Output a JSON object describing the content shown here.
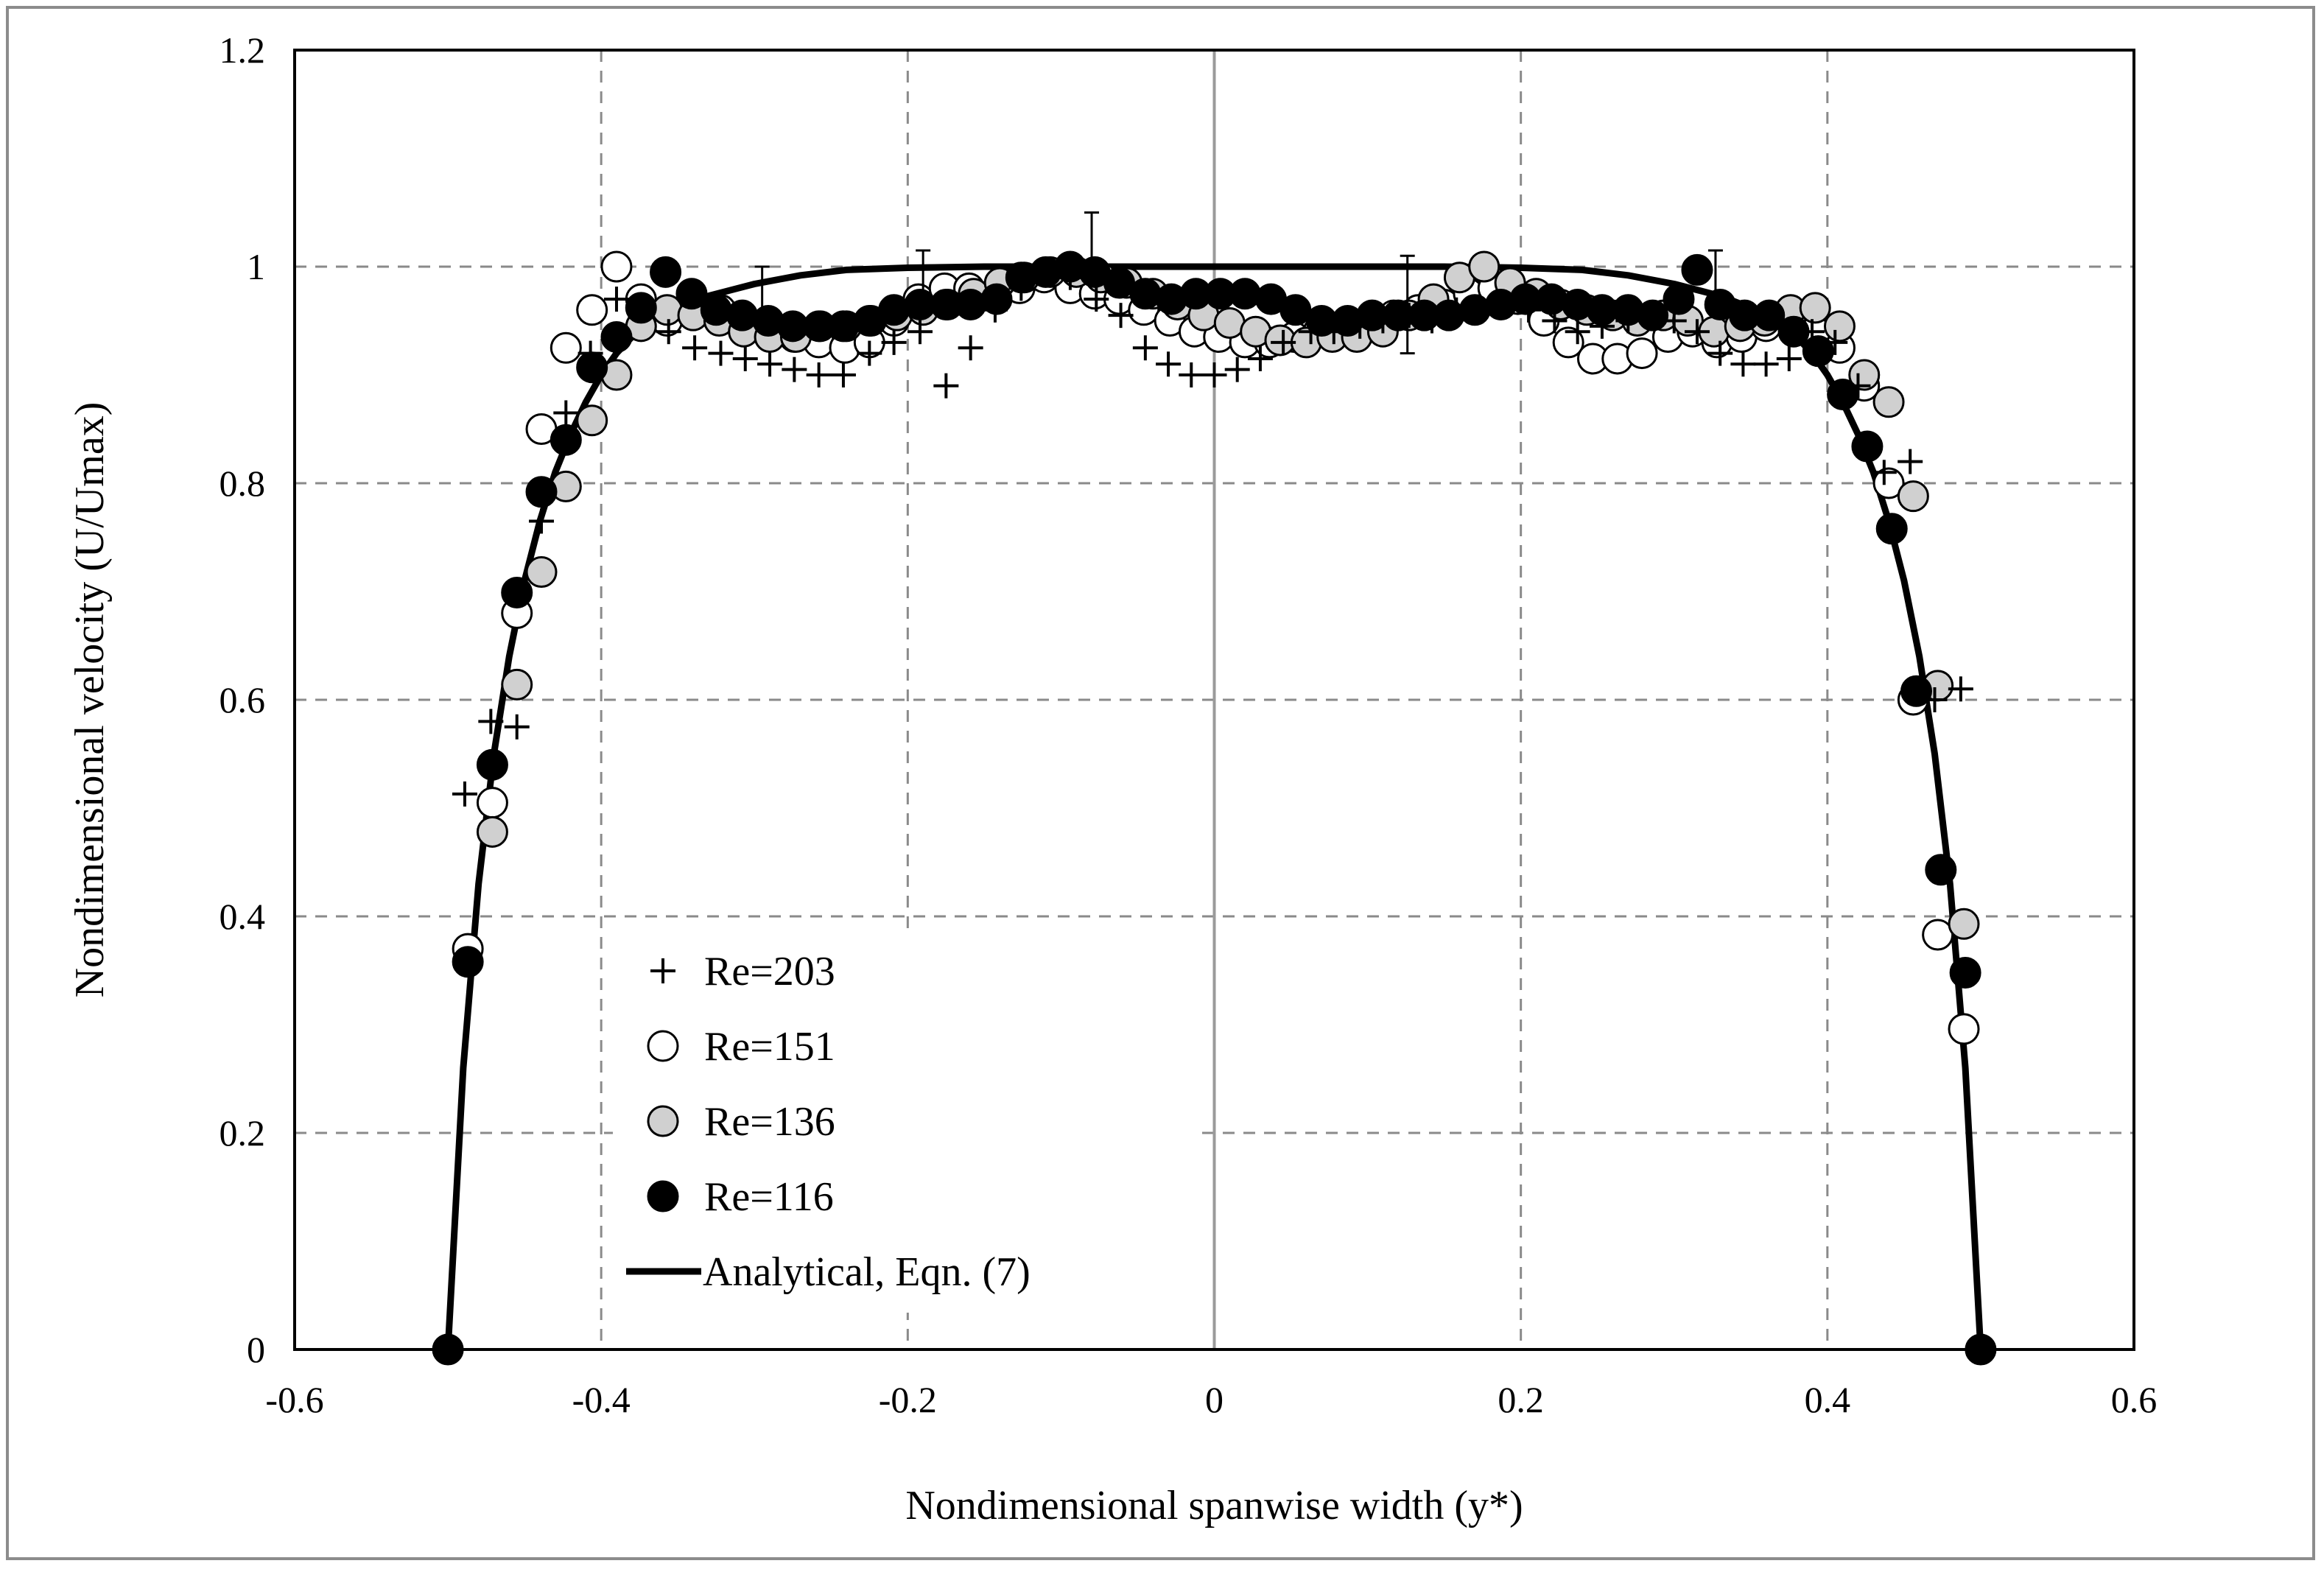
{
  "chart_data": {
    "type": "scatter",
    "title": "",
    "xlabel": "Nondimensional spanwise width (y*)",
    "ylabel": "Nondimensional velocity (U/Umax)",
    "xlim": [
      -0.6,
      0.6
    ],
    "ylim": [
      0,
      1.2
    ],
    "x_ticks": [
      -0.6,
      -0.4,
      -0.2,
      0,
      0.2,
      0.4,
      0.6
    ],
    "x_tick_labels": [
      "-0.6",
      "-0.4",
      "-0.2",
      "0",
      "0.2",
      "0.4",
      "0.6"
    ],
    "y_ticks": [
      0,
      0.2,
      0.4,
      0.6,
      0.8,
      1,
      1.2
    ],
    "y_tick_labels": [
      "0",
      "0.2",
      "0.4",
      "0.6",
      "0.8",
      "1",
      "1.2"
    ],
    "grid": true,
    "legend_position": "lower-left",
    "series": [
      {
        "name": "Re=203",
        "marker": "plus",
        "color": "#000000",
        "points": [
          [
            -0.489,
            0.513
          ],
          [
            -0.472,
            0.58
          ],
          [
            -0.455,
            0.575
          ],
          [
            -0.439,
            0.765
          ],
          [
            -0.423,
            0.865
          ],
          [
            -0.407,
            0.92
          ],
          [
            -0.39,
            0.97
          ],
          [
            -0.374,
            0.96
          ],
          [
            -0.356,
            0.94
          ],
          [
            -0.339,
            0.925
          ],
          [
            -0.322,
            0.92
          ],
          [
            -0.306,
            0.915
          ],
          [
            -0.29,
            0.91
          ],
          [
            -0.274,
            0.905
          ],
          [
            -0.258,
            0.9
          ],
          [
            -0.242,
            0.9
          ],
          [
            -0.225,
            0.92
          ],
          [
            -0.209,
            0.93
          ],
          [
            -0.192,
            0.94
          ],
          [
            -0.175,
            0.89
          ],
          [
            -0.159,
            0.925
          ],
          [
            -0.143,
            0.96
          ],
          [
            -0.126,
            0.98
          ],
          [
            -0.11,
            0.995
          ],
          [
            -0.094,
            0.99
          ],
          [
            -0.077,
            0.97
          ],
          [
            -0.061,
            0.955
          ],
          [
            -0.045,
            0.925
          ],
          [
            -0.03,
            0.91
          ],
          [
            -0.015,
            0.9
          ],
          [
            0.0,
            0.9
          ],
          [
            0.015,
            0.905
          ],
          [
            0.03,
            0.915
          ],
          [
            0.045,
            0.93
          ],
          [
            0.063,
            0.94
          ],
          [
            0.078,
            0.94
          ],
          [
            0.095,
            0.945
          ],
          [
            0.11,
            0.95
          ],
          [
            0.127,
            0.955
          ],
          [
            0.142,
            0.95
          ],
          [
            0.158,
            0.96
          ],
          [
            0.175,
            0.96
          ],
          [
            0.19,
            0.965
          ],
          [
            0.205,
            0.96
          ],
          [
            0.222,
            0.95
          ],
          [
            0.237,
            0.94
          ],
          [
            0.253,
            0.945
          ],
          [
            0.27,
            0.95
          ],
          [
            0.285,
            0.955
          ],
          [
            0.3,
            0.95
          ],
          [
            0.315,
            0.94
          ],
          [
            0.33,
            0.92
          ],
          [
            0.345,
            0.91
          ],
          [
            0.36,
            0.91
          ],
          [
            0.375,
            0.915
          ],
          [
            0.39,
            0.94
          ],
          [
            0.405,
            0.93
          ],
          [
            0.42,
            0.89
          ],
          [
            0.437,
            0.81
          ],
          [
            0.454,
            0.82
          ],
          [
            0.47,
            0.6
          ],
          [
            0.487,
            0.61
          ]
        ]
      },
      {
        "name": "Re=151",
        "marker": "open-circle",
        "color": "#ffffff",
        "points": [
          [
            -0.487,
            0.37
          ],
          [
            -0.471,
            0.505
          ],
          [
            -0.455,
            0.68
          ],
          [
            -0.439,
            0.85
          ],
          [
            -0.423,
            0.925
          ],
          [
            -0.406,
            0.96
          ],
          [
            -0.39,
            1.0
          ],
          [
            -0.374,
            0.97
          ],
          [
            -0.357,
            0.95
          ],
          [
            -0.339,
            0.96
          ],
          [
            -0.322,
            0.96
          ],
          [
            -0.306,
            0.95
          ],
          [
            -0.29,
            0.94
          ],
          [
            -0.274,
            0.935
          ],
          [
            -0.258,
            0.93
          ],
          [
            -0.241,
            0.925
          ],
          [
            -0.225,
            0.93
          ],
          [
            -0.209,
            0.95
          ],
          [
            -0.193,
            0.97
          ],
          [
            -0.176,
            0.98
          ],
          [
            -0.16,
            0.98
          ],
          [
            -0.144,
            0.975
          ],
          [
            -0.127,
            0.98
          ],
          [
            -0.111,
            0.99
          ],
          [
            -0.094,
            0.98
          ],
          [
            -0.078,
            0.975
          ],
          [
            -0.062,
            0.97
          ],
          [
            -0.046,
            0.96
          ],
          [
            -0.029,
            0.95
          ],
          [
            -0.013,
            0.94
          ],
          [
            0.003,
            0.935
          ],
          [
            0.02,
            0.93
          ],
          [
            0.036,
            0.93
          ],
          [
            0.052,
            0.935
          ],
          [
            0.068,
            0.94
          ],
          [
            0.085,
            0.945
          ],
          [
            0.101,
            0.95
          ],
          [
            0.117,
            0.955
          ],
          [
            0.133,
            0.96
          ],
          [
            0.15,
            0.965
          ],
          [
            0.166,
            0.975
          ],
          [
            0.182,
            0.98
          ],
          [
            0.198,
            0.97
          ],
          [
            0.215,
            0.95
          ],
          [
            0.231,
            0.93
          ],
          [
            0.247,
            0.915
          ],
          [
            0.263,
            0.915
          ],
          [
            0.279,
            0.92
          ],
          [
            0.296,
            0.935
          ],
          [
            0.312,
            0.94
          ],
          [
            0.328,
            0.93
          ],
          [
            0.344,
            0.935
          ],
          [
            0.36,
            0.945
          ],
          [
            0.376,
            0.95
          ],
          [
            0.392,
            0.94
          ],
          [
            0.408,
            0.925
          ],
          [
            0.424,
            0.89
          ],
          [
            0.44,
            0.8
          ],
          [
            0.456,
            0.6
          ],
          [
            0.472,
            0.383
          ],
          [
            0.489,
            0.296
          ]
        ]
      },
      {
        "name": "Re=136",
        "marker": "gray-circle",
        "color": "#d0d0d0",
        "points": [
          [
            -0.471,
            0.478
          ],
          [
            -0.455,
            0.614
          ],
          [
            -0.439,
            0.718
          ],
          [
            -0.423,
            0.797
          ],
          [
            -0.406,
            0.858
          ],
          [
            -0.39,
            0.9
          ],
          [
            -0.374,
            0.945
          ],
          [
            -0.357,
            0.96
          ],
          [
            -0.34,
            0.955
          ],
          [
            -0.323,
            0.95
          ],
          [
            -0.307,
            0.94
          ],
          [
            -0.29,
            0.935
          ],
          [
            -0.273,
            0.935
          ],
          [
            -0.257,
            0.945
          ],
          [
            -0.24,
            0.945
          ],
          [
            -0.224,
            0.95
          ],
          [
            -0.207,
            0.955
          ],
          [
            -0.19,
            0.96
          ],
          [
            -0.174,
            0.965
          ],
          [
            -0.157,
            0.975
          ],
          [
            -0.14,
            0.985
          ],
          [
            -0.124,
            0.99
          ],
          [
            -0.107,
            0.995
          ],
          [
            -0.09,
            0.995
          ],
          [
            -0.074,
            0.99
          ],
          [
            -0.057,
            0.985
          ],
          [
            -0.04,
            0.975
          ],
          [
            -0.024,
            0.965
          ],
          [
            -0.007,
            0.955
          ],
          [
            0.01,
            0.948
          ],
          [
            0.027,
            0.94
          ],
          [
            0.043,
            0.932
          ],
          [
            0.06,
            0.93
          ],
          [
            0.077,
            0.935
          ],
          [
            0.093,
            0.935
          ],
          [
            0.11,
            0.94
          ],
          [
            0.127,
            0.955
          ],
          [
            0.143,
            0.97
          ],
          [
            0.16,
            0.99
          ],
          [
            0.176,
            1.0
          ],
          [
            0.193,
            0.985
          ],
          [
            0.21,
            0.975
          ],
          [
            0.226,
            0.965
          ],
          [
            0.243,
            0.96
          ],
          [
            0.26,
            0.955
          ],
          [
            0.276,
            0.95
          ],
          [
            0.293,
            0.955
          ],
          [
            0.309,
            0.95
          ],
          [
            0.326,
            0.94
          ],
          [
            0.343,
            0.945
          ],
          [
            0.359,
            0.95
          ],
          [
            0.376,
            0.96
          ],
          [
            0.392,
            0.962
          ],
          [
            0.408,
            0.945
          ],
          [
            0.424,
            0.9
          ],
          [
            0.44,
            0.875
          ],
          [
            0.456,
            0.788
          ],
          [
            0.472,
            0.613
          ],
          [
            0.489,
            0.393
          ]
        ]
      },
      {
        "name": "Re=116",
        "marker": "filled-circle",
        "color": "#000000",
        "points": [
          [
            -0.5,
            0.0
          ],
          [
            -0.487,
            0.358
          ],
          [
            -0.471,
            0.54
          ],
          [
            -0.455,
            0.699
          ],
          [
            -0.439,
            0.792
          ],
          [
            -0.423,
            0.84
          ],
          [
            -0.406,
            0.907
          ],
          [
            -0.39,
            0.935
          ],
          [
            -0.374,
            0.962
          ],
          [
            -0.358,
            0.995
          ],
          [
            -0.341,
            0.975
          ],
          [
            -0.325,
            0.96
          ],
          [
            -0.308,
            0.955
          ],
          [
            -0.291,
            0.95
          ],
          [
            -0.275,
            0.945
          ],
          [
            -0.258,
            0.945
          ],
          [
            -0.242,
            0.945
          ],
          [
            -0.225,
            0.95
          ],
          [
            -0.209,
            0.96
          ],
          [
            -0.192,
            0.965
          ],
          [
            -0.175,
            0.965
          ],
          [
            -0.159,
            0.965
          ],
          [
            -0.142,
            0.97
          ],
          [
            -0.126,
            0.99
          ],
          [
            -0.11,
            0.995
          ],
          [
            -0.094,
            1.0
          ],
          [
            -0.078,
            0.995
          ],
          [
            -0.062,
            0.985
          ],
          [
            -0.045,
            0.975
          ],
          [
            -0.028,
            0.97
          ],
          [
            -0.012,
            0.975
          ],
          [
            0.004,
            0.975
          ],
          [
            0.02,
            0.975
          ],
          [
            0.037,
            0.97
          ],
          [
            0.053,
            0.96
          ],
          [
            0.07,
            0.95
          ],
          [
            0.087,
            0.95
          ],
          [
            0.103,
            0.955
          ],
          [
            0.12,
            0.955
          ],
          [
            0.137,
            0.955
          ],
          [
            0.153,
            0.955
          ],
          [
            0.17,
            0.96
          ],
          [
            0.187,
            0.965
          ],
          [
            0.203,
            0.97
          ],
          [
            0.22,
            0.97
          ],
          [
            0.237,
            0.965
          ],
          [
            0.253,
            0.96
          ],
          [
            0.27,
            0.96
          ],
          [
            0.286,
            0.955
          ],
          [
            0.303,
            0.97
          ],
          [
            0.315,
            0.997
          ],
          [
            0.33,
            0.965
          ],
          [
            0.346,
            0.955
          ],
          [
            0.362,
            0.955
          ],
          [
            0.378,
            0.94
          ],
          [
            0.394,
            0.922
          ],
          [
            0.41,
            0.882
          ],
          [
            0.426,
            0.834
          ],
          [
            0.442,
            0.758
          ],
          [
            0.458,
            0.608
          ],
          [
            0.474,
            0.443
          ],
          [
            0.49,
            0.348
          ],
          [
            0.5,
            0.0
          ]
        ]
      },
      {
        "name": "Analytical, Eqn. (7)",
        "marker": "line",
        "color": "#000000",
        "points": [
          [
            -0.5,
            0.0
          ],
          [
            -0.49,
            0.26
          ],
          [
            -0.48,
            0.43
          ],
          [
            -0.47,
            0.55
          ],
          [
            -0.46,
            0.64
          ],
          [
            -0.45,
            0.71
          ],
          [
            -0.44,
            0.765
          ],
          [
            -0.43,
            0.81
          ],
          [
            -0.42,
            0.845
          ],
          [
            -0.41,
            0.875
          ],
          [
            -0.4,
            0.9
          ],
          [
            -0.39,
            0.92
          ],
          [
            -0.38,
            0.935
          ],
          [
            -0.37,
            0.947
          ],
          [
            -0.35,
            0.962
          ],
          [
            -0.33,
            0.973
          ],
          [
            -0.3,
            0.984
          ],
          [
            -0.27,
            0.992
          ],
          [
            -0.24,
            0.997
          ],
          [
            -0.2,
            0.999
          ],
          [
            -0.15,
            1.0
          ],
          [
            0.0,
            1.0
          ],
          [
            0.15,
            1.0
          ],
          [
            0.2,
            0.999
          ],
          [
            0.24,
            0.997
          ],
          [
            0.27,
            0.992
          ],
          [
            0.3,
            0.984
          ],
          [
            0.33,
            0.973
          ],
          [
            0.35,
            0.962
          ],
          [
            0.37,
            0.947
          ],
          [
            0.38,
            0.935
          ],
          [
            0.39,
            0.92
          ],
          [
            0.4,
            0.9
          ],
          [
            0.41,
            0.875
          ],
          [
            0.42,
            0.845
          ],
          [
            0.43,
            0.81
          ],
          [
            0.44,
            0.765
          ],
          [
            0.45,
            0.71
          ],
          [
            0.46,
            0.64
          ],
          [
            0.47,
            0.55
          ],
          [
            0.48,
            0.43
          ],
          [
            0.49,
            0.26
          ],
          [
            0.5,
            0.0
          ]
        ]
      }
    ],
    "error_bars": [
      {
        "series": "Re=203",
        "x": -0.295,
        "y": 0.96,
        "upper": 1.0
      },
      {
        "series": "Re=203",
        "x": -0.19,
        "y": 0.97,
        "upper": 1.015
      },
      {
        "series": "Re=203",
        "x": -0.08,
        "y": 0.99,
        "upper": 1.05
      },
      {
        "series": "Re=203",
        "x": 0.126,
        "y": 0.965,
        "upper": 1.01,
        "lower": 0.92
      },
      {
        "series": "Re=203",
        "x": 0.327,
        "y": 0.97,
        "upper": 1.015
      }
    ]
  }
}
